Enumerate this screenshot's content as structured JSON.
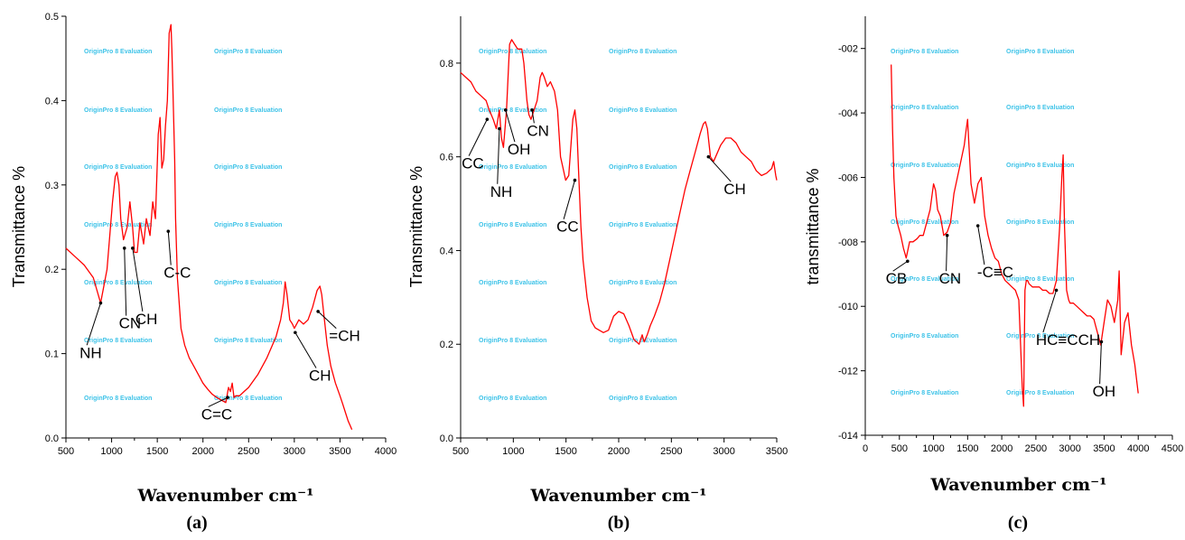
{
  "chart_data": [
    {
      "type": "line",
      "panel": "(a)",
      "xlabel": "Wavenumber cm⁻¹",
      "ylabel": "Transmittance %",
      "xlim": [
        500,
        4000
      ],
      "ylim": [
        0.0,
        0.5
      ],
      "xticks": [
        "500",
        "1000",
        "1500",
        "2000",
        "2500",
        "3000",
        "3500",
        "4000"
      ],
      "yticks": [
        "0.0",
        "0.1",
        "0.2",
        "0.3",
        "0.4",
        "0.5"
      ],
      "series": [
        {
          "color": "#ff0000",
          "x": [
            500,
            600,
            700,
            800,
            880,
            950,
            1010,
            1040,
            1060,
            1080,
            1100,
            1130,
            1170,
            1200,
            1230,
            1250,
            1280,
            1310,
            1350,
            1380,
            1420,
            1450,
            1480,
            1510,
            1530,
            1550,
            1570,
            1590,
            1610,
            1630,
            1650,
            1660,
            1670,
            1690,
            1700,
            1720,
            1760,
            1800,
            1850,
            1900,
            1950,
            2000,
            2050,
            2100,
            2150,
            2200,
            2250,
            2280,
            2300,
            2320,
            2340,
            2360,
            2400,
            2450,
            2500,
            2600,
            2700,
            2800,
            2850,
            2880,
            2900,
            2920,
            2950,
            2980,
            3000,
            3050,
            3100,
            3150,
            3200,
            3250,
            3280,
            3300,
            3330,
            3360,
            3400,
            3450,
            3500,
            3530,
            3560,
            3590,
            3610,
            3630
          ],
          "y": [
            0.225,
            0.215,
            0.205,
            0.19,
            0.16,
            0.2,
            0.28,
            0.31,
            0.315,
            0.3,
            0.26,
            0.235,
            0.25,
            0.28,
            0.25,
            0.22,
            0.22,
            0.255,
            0.23,
            0.26,
            0.24,
            0.28,
            0.26,
            0.36,
            0.38,
            0.32,
            0.33,
            0.37,
            0.4,
            0.48,
            0.49,
            0.46,
            0.42,
            0.33,
            0.26,
            0.19,
            0.13,
            0.11,
            0.095,
            0.085,
            0.075,
            0.065,
            0.058,
            0.052,
            0.048,
            0.045,
            0.042,
            0.06,
            0.055,
            0.065,
            0.048,
            0.05,
            0.05,
            0.055,
            0.06,
            0.075,
            0.095,
            0.12,
            0.14,
            0.16,
            0.185,
            0.17,
            0.14,
            0.135,
            0.13,
            0.14,
            0.135,
            0.14,
            0.155,
            0.175,
            0.18,
            0.17,
            0.14,
            0.11,
            0.085,
            0.065,
            0.05,
            0.04,
            0.03,
            0.02,
            0.015,
            0.01
          ]
        }
      ],
      "annotations": [
        {
          "text": "NH",
          "x": 650,
          "y": 0.095,
          "ax": 880,
          "ay": 0.16
        },
        {
          "text": "CN",
          "x": 1080,
          "y": 0.13,
          "ax": 1140,
          "ay": 0.225
        },
        {
          "text": "CH",
          "x": 1260,
          "y": 0.135,
          "ax": 1230,
          "ay": 0.225
        },
        {
          "text": "C-C",
          "x": 1570,
          "y": 0.19,
          "ax": 1620,
          "ay": 0.245
        },
        {
          "text": "=CH",
          "x": 3380,
          "y": 0.115,
          "ax": 3260,
          "ay": 0.15
        },
        {
          "text": "CH",
          "x": 3160,
          "y": 0.068,
          "ax": 3010,
          "ay": 0.125
        },
        {
          "text": "C=C",
          "x": 1980,
          "y": 0.022,
          "ax": 2270,
          "ay": 0.048
        }
      ]
    },
    {
      "type": "line",
      "panel": "(b)",
      "xlabel": "Wavenumber cm⁻¹",
      "ylabel": "Transmittance %",
      "xlim": [
        500,
        3600
      ],
      "ylim": [
        0.0,
        0.9
      ],
      "xticks": [
        "500",
        "1000",
        "1500",
        "2000",
        "2500",
        "3000",
        "3500"
      ],
      "yticks": [
        "0.0",
        "0.2",
        "0.4",
        "0.6",
        "0.8"
      ],
      "series": [
        {
          "color": "#ff0000",
          "x": [
            500,
            550,
            600,
            650,
            700,
            750,
            780,
            800,
            820,
            850,
            880,
            900,
            920,
            950,
            980,
            1000,
            1030,
            1060,
            1100,
            1120,
            1150,
            1170,
            1190,
            1220,
            1250,
            1280,
            1300,
            1320,
            1350,
            1380,
            1420,
            1450,
            1480,
            1500,
            1530,
            1560,
            1600,
            1620,
            1640,
            1660,
            1680,
            1700,
            1740,
            1780,
            1820,
            1860,
            1900,
            1950,
            2000,
            2050,
            2100,
            2150,
            2200,
            2250,
            2280,
            2300,
            2330,
            2360,
            2400,
            2450,
            2500,
            2550,
            2600,
            2650,
            2700,
            2750,
            2800,
            2850,
            2880,
            2900,
            2920,
            2950,
            2980,
            3000,
            3050,
            3100,
            3150,
            3200,
            3250,
            3300,
            3350,
            3400,
            3450,
            3500,
            3550,
            3570,
            3590,
            3600
          ],
          "y": [
            0.78,
            0.77,
            0.76,
            0.74,
            0.73,
            0.72,
            0.7,
            0.69,
            0.68,
            0.66,
            0.7,
            0.64,
            0.62,
            0.7,
            0.84,
            0.85,
            0.84,
            0.83,
            0.83,
            0.8,
            0.72,
            0.69,
            0.68,
            0.7,
            0.72,
            0.77,
            0.78,
            0.77,
            0.75,
            0.76,
            0.74,
            0.7,
            0.6,
            0.58,
            0.55,
            0.56,
            0.68,
            0.7,
            0.66,
            0.55,
            0.45,
            0.38,
            0.3,
            0.25,
            0.235,
            0.23,
            0.225,
            0.23,
            0.26,
            0.27,
            0.265,
            0.24,
            0.21,
            0.2,
            0.22,
            0.205,
            0.22,
            0.24,
            0.26,
            0.29,
            0.33,
            0.38,
            0.43,
            0.48,
            0.53,
            0.57,
            0.61,
            0.65,
            0.67,
            0.675,
            0.66,
            0.6,
            0.59,
            0.6,
            0.625,
            0.64,
            0.64,
            0.63,
            0.61,
            0.6,
            0.59,
            0.57,
            0.56,
            0.565,
            0.575,
            0.59,
            0.56,
            0.55
          ]
        }
      ],
      "annotations": [
        {
          "text": "CC",
          "x": 510,
          "y": 0.575,
          "ax": 760,
          "ay": 0.68
        },
        {
          "text": "NH",
          "x": 790,
          "y": 0.515,
          "ax": 880,
          "ay": 0.66
        },
        {
          "text": "OH",
          "x": 960,
          "y": 0.605,
          "ax": 940,
          "ay": 0.7
        },
        {
          "text": "CN",
          "x": 1150,
          "y": 0.645,
          "ax": 1200,
          "ay": 0.7
        },
        {
          "text": "CC",
          "x": 1440,
          "y": 0.44,
          "ax": 1620,
          "ay": 0.55
        },
        {
          "text": "CH",
          "x": 3080,
          "y": 0.52,
          "ax": 2930,
          "ay": 0.6
        }
      ]
    },
    {
      "type": "line",
      "panel": "(c)",
      "xlabel": "Wavenumber cm⁻¹",
      "ylabel": "transmittance %",
      "xlim": [
        0,
        4500
      ],
      "ylim": [
        -0.014,
        -0.001
      ],
      "xticks": [
        "0",
        "500",
        "1000",
        "1500",
        "2000",
        "2500",
        "3000",
        "3500",
        "4000",
        "4500"
      ],
      "yticks": [
        "-002",
        "-004",
        "-006",
        "-008",
        "-010",
        "-012",
        "-014"
      ],
      "series": [
        {
          "color": "#ff0000",
          "x": [
            380,
            400,
            420,
            450,
            480,
            520,
            560,
            600,
            650,
            700,
            760,
            800,
            850,
            900,
            950,
            1000,
            1030,
            1060,
            1100,
            1150,
            1200,
            1250,
            1300,
            1350,
            1400,
            1450,
            1480,
            1500,
            1520,
            1550,
            1600,
            1650,
            1700,
            1750,
            1800,
            1850,
            1900,
            1950,
            2000,
            2050,
            2100,
            2150,
            2200,
            2250,
            2300,
            2320,
            2340,
            2360,
            2380,
            2400,
            2450,
            2500,
            2550,
            2600,
            2650,
            2700,
            2750,
            2800,
            2850,
            2880,
            2900,
            2920,
            2950,
            2980,
            3000,
            3050,
            3100,
            3150,
            3200,
            3250,
            3300,
            3350,
            3400,
            3450,
            3500,
            3550,
            3600,
            3650,
            3700,
            3720,
            3750,
            3800,
            3850,
            3900,
            3950,
            4000
          ],
          "y": [
            -0.0025,
            -0.0045,
            -0.006,
            -0.0072,
            -0.0075,
            -0.0078,
            -0.0082,
            -0.0085,
            -0.008,
            -0.008,
            -0.0079,
            -0.0078,
            -0.0078,
            -0.0074,
            -0.007,
            -0.0062,
            -0.0064,
            -0.007,
            -0.0072,
            -0.0078,
            -0.0077,
            -0.0074,
            -0.0065,
            -0.006,
            -0.0055,
            -0.005,
            -0.0045,
            -0.0042,
            -0.005,
            -0.0062,
            -0.0068,
            -0.0062,
            -0.006,
            -0.0072,
            -0.0078,
            -0.0082,
            -0.0085,
            -0.0086,
            -0.009,
            -0.0092,
            -0.0093,
            -0.0094,
            -0.0095,
            -0.0098,
            -0.0125,
            -0.0131,
            -0.0095,
            -0.0092,
            -0.0092,
            -0.0093,
            -0.0094,
            -0.0094,
            -0.0094,
            -0.0095,
            -0.0095,
            -0.0096,
            -0.0096,
            -0.0092,
            -0.0075,
            -0.006,
            -0.0053,
            -0.0075,
            -0.0095,
            -0.0098,
            -0.0099,
            -0.0099,
            -0.01,
            -0.0101,
            -0.0102,
            -0.0103,
            -0.0103,
            -0.0104,
            -0.0108,
            -0.0112,
            -0.0105,
            -0.0098,
            -0.01,
            -0.0105,
            -0.0098,
            -0.0089,
            -0.0115,
            -0.0105,
            -0.0102,
            -0.0112,
            -0.0118,
            -0.0127
          ]
        }
      ],
      "annotations": [
        {
          "text": "CB",
          "x": 300,
          "y": -0.0093,
          "ax": 620,
          "ay": -0.0086
        },
        {
          "text": "CN",
          "x": 1080,
          "y": -0.0093,
          "ax": 1200,
          "ay": -0.0078
        },
        {
          "text": "-C≡C",
          "x": 1640,
          "y": -0.0091,
          "ax": 1650,
          "ay": -0.0075
        },
        {
          "text": "HC≡CCH",
          "x": 2500,
          "y": -0.0112,
          "ax": 2800,
          "ay": -0.0095
        },
        {
          "text": "OH",
          "x": 3330,
          "y": -0.0128,
          "ax": 3460,
          "ay": -0.0111
        }
      ]
    }
  ],
  "watermark": "OriginPro 8 Evaluation"
}
